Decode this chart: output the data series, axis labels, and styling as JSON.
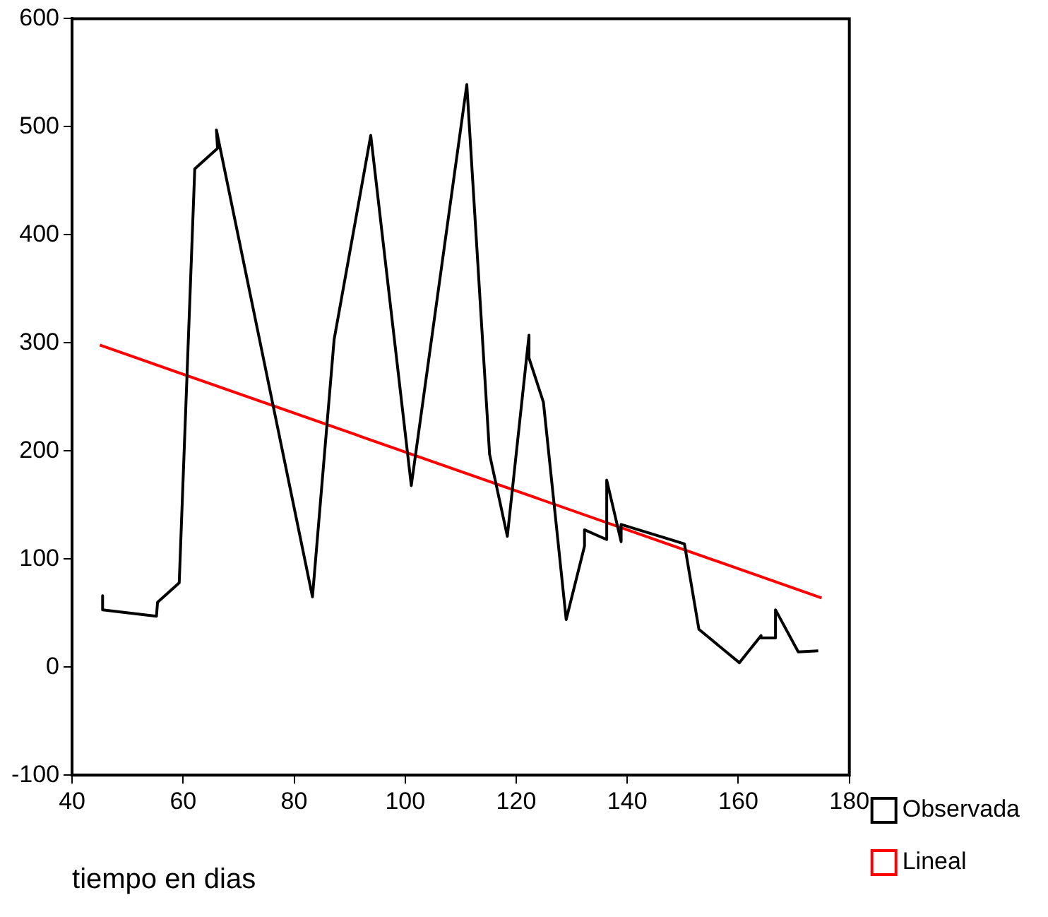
{
  "chart_data": {
    "type": "line",
    "xlabel": "tiempo en dias",
    "xlim": [
      40,
      180
    ],
    "xticks": [
      40,
      60,
      80,
      100,
      120,
      140,
      160,
      180
    ],
    "ylim": [
      -100,
      600
    ],
    "yticks": [
      -100,
      0,
      100,
      200,
      300,
      400,
      500,
      600
    ],
    "grid": false,
    "legend": "bottom right",
    "marker": "none",
    "line_style": "solid",
    "series": [
      {
        "name": "Observada",
        "type": "line",
        "color": "#000000",
        "x": [
          45.5,
          45.5,
          55.2,
          55.4,
          59.3,
          62.1,
          66.2,
          66,
          83.3,
          87.2,
          93.8,
          101.1,
          111.1,
          115.2,
          118.4,
          122.3,
          122.3,
          124.9,
          129,
          132.3,
          132.3,
          136.3,
          136.3,
          138.9,
          138.9,
          150.3,
          152.9,
          160.2,
          164.1,
          164.1,
          166.7,
          166.7,
          170.8,
          174.4
        ],
        "values": [
          66,
          53,
          47,
          60,
          78,
          461,
          480,
          497,
          65,
          303,
          492,
          168,
          539,
          197,
          121,
          307,
          286,
          245,
          44,
          112,
          127,
          118,
          173,
          116,
          132,
          114,
          35,
          4,
          29,
          27,
          27,
          53,
          14,
          15
        ]
      },
      {
        "name": "Lineal",
        "type": "line",
        "color": "#ff0000",
        "x": [
          45,
          175
        ],
        "values": [
          298,
          64
        ]
      }
    ]
  }
}
